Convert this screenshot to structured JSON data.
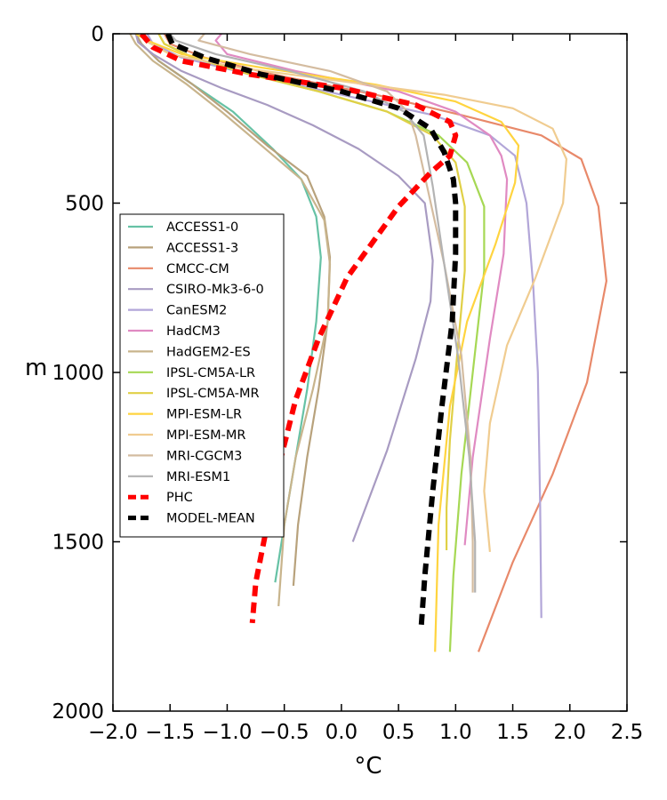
{
  "chart_data": {
    "type": "line",
    "title": "",
    "xlabel": "°C",
    "ylabel": "m",
    "xlim": [
      -2.0,
      2.5
    ],
    "ylim": [
      2000,
      0
    ],
    "y_inverted": true,
    "grid": false,
    "legend_position": "center-left",
    "x_ticks": [
      "−2.0",
      "−1.5",
      "−1.0",
      "−0.5",
      "0.0",
      "0.5",
      "1.0",
      "1.5",
      "2.0",
      "2.5"
    ],
    "y_ticks": [
      "0",
      "500",
      "1000",
      "1500",
      "2000"
    ],
    "series": [
      {
        "name": "ACCESS1-0",
        "color": "#66c2a5",
        "style": "solid",
        "x": [
          -1.8,
          -1.75,
          -1.6,
          -1.3,
          -0.95,
          -0.6,
          -0.35,
          -0.22,
          -0.18,
          -0.22,
          -0.3,
          -0.4,
          -0.5,
          -0.58
        ],
        "y": [
          0,
          30,
          80,
          150,
          230,
          340,
          430,
          540,
          660,
          850,
          1050,
          1250,
          1450,
          1620
        ]
      },
      {
        "name": "ACCESS1-3",
        "color": "#b8a27c",
        "style": "solid",
        "x": [
          -1.8,
          -1.75,
          -1.6,
          -1.3,
          -1.0,
          -0.65,
          -0.3,
          -0.15,
          -0.1,
          -0.12,
          -0.2,
          -0.3,
          -0.38,
          -0.42
        ],
        "y": [
          0,
          30,
          80,
          150,
          230,
          330,
          420,
          540,
          660,
          850,
          1050,
          1250,
          1450,
          1630
        ]
      },
      {
        "name": "CMCC-CM",
        "color": "#e8896a",
        "style": "solid",
        "x": [
          -1.55,
          -1.5,
          -1.2,
          -0.6,
          0.3,
          1.05,
          1.75,
          2.1,
          2.25,
          2.32,
          2.15,
          1.85,
          1.5,
          1.2
        ],
        "y": [
          0,
          30,
          70,
          120,
          180,
          240,
          300,
          370,
          510,
          730,
          1030,
          1300,
          1560,
          1825
        ]
      },
      {
        "name": "CSIRO-Mk3-6-0",
        "color": "#a89bc2",
        "style": "solid",
        "x": [
          -1.8,
          -1.78,
          -1.65,
          -1.4,
          -1.05,
          -0.65,
          -0.25,
          0.15,
          0.5,
          0.73,
          0.8,
          0.78,
          0.65,
          0.4,
          0.1
        ],
        "y": [
          0,
          25,
          60,
          110,
          160,
          210,
          270,
          340,
          420,
          500,
          670,
          790,
          960,
          1230,
          1500
        ]
      },
      {
        "name": "CanESM2",
        "color": "#b2a6d8",
        "style": "solid",
        "x": [
          -1.7,
          -1.65,
          -1.4,
          -0.8,
          0.0,
          0.8,
          1.3,
          1.52,
          1.62,
          1.68,
          1.72,
          1.74,
          1.75
        ],
        "y": [
          0,
          30,
          70,
          120,
          180,
          240,
          300,
          360,
          500,
          750,
          1000,
          1400,
          1725
        ]
      },
      {
        "name": "HadCM3",
        "color": "#e08ac2",
        "style": "solid",
        "x": [
          -1.05,
          -1.1,
          -1.0,
          -0.4,
          0.5,
          1.0,
          1.3,
          1.4,
          1.45,
          1.42,
          1.3,
          1.15,
          1.08
        ],
        "y": [
          0,
          20,
          60,
          110,
          170,
          230,
          300,
          360,
          430,
          650,
          900,
          1250,
          1510
        ]
      },
      {
        "name": "HadGEM2-ES",
        "color": "#c8b48c",
        "style": "solid",
        "x": [
          -1.85,
          -1.8,
          -1.65,
          -1.35,
          -1.05,
          -0.7,
          -0.35,
          -0.15,
          -0.1,
          -0.12,
          -0.25,
          -0.4,
          -0.5,
          -0.55
        ],
        "y": [
          0,
          30,
          80,
          150,
          230,
          330,
          430,
          550,
          680,
          850,
          1050,
          1250,
          1450,
          1690
        ]
      },
      {
        "name": "IPSL-CM5A-LR",
        "color": "#a6d854",
        "style": "solid",
        "x": [
          -1.6,
          -1.55,
          -1.3,
          -0.8,
          -0.2,
          0.4,
          0.85,
          1.1,
          1.25,
          1.25,
          1.15,
          1.05,
          0.98,
          0.95
        ],
        "y": [
          0,
          30,
          70,
          120,
          170,
          230,
          300,
          380,
          510,
          700,
          1000,
          1300,
          1600,
          1825
        ]
      },
      {
        "name": "IPSL-CM5A-MR",
        "color": "#e0d046",
        "style": "solid",
        "x": [
          -1.6,
          -1.55,
          -1.3,
          -0.8,
          -0.2,
          0.4,
          0.8,
          1.0,
          1.08,
          1.08,
          1.0,
          0.95,
          0.92,
          0.92
        ],
        "y": [
          0,
          30,
          70,
          120,
          170,
          230,
          300,
          380,
          510,
          700,
          1000,
          1200,
          1400,
          1525
        ]
      },
      {
        "name": "MPI-ESM-LR",
        "color": "#ffd43f",
        "style": "solid",
        "x": [
          -1.8,
          -1.7,
          -1.4,
          -0.7,
          0.3,
          1.0,
          1.4,
          1.55,
          1.52,
          1.35,
          1.1,
          0.95,
          0.85,
          0.82
        ],
        "y": [
          0,
          20,
          60,
          100,
          150,
          200,
          260,
          330,
          440,
          620,
          850,
          1100,
          1450,
          1825
        ]
      },
      {
        "name": "MPI-ESM-MR",
        "color": "#f0cc90",
        "style": "solid",
        "x": [
          -1.75,
          -1.72,
          -1.5,
          -0.9,
          0.0,
          0.9,
          1.5,
          1.85,
          1.97,
          1.94,
          1.7,
          1.45,
          1.3,
          1.25,
          1.3
        ],
        "y": [
          0,
          20,
          60,
          100,
          140,
          180,
          220,
          280,
          370,
          500,
          720,
          920,
          1150,
          1350,
          1530
        ]
      },
      {
        "name": "MRI-CGCM3",
        "color": "#d4bca0",
        "style": "solid",
        "x": [
          -1.2,
          -1.25,
          -0.8,
          -0.1,
          0.4,
          0.58,
          0.65,
          0.75,
          0.9,
          1.05,
          1.13,
          1.15,
          1.15
        ],
        "y": [
          0,
          20,
          60,
          110,
          170,
          230,
          300,
          450,
          680,
          950,
          1250,
          1500,
          1650
        ]
      },
      {
        "name": "MRI-ESM1",
        "color": "#b3b3b3",
        "style": "solid",
        "x": [
          -1.5,
          -1.45,
          -1.1,
          -0.45,
          0.2,
          0.55,
          0.72,
          0.8,
          0.9,
          1.02,
          1.12,
          1.17,
          1.17
        ],
        "y": [
          0,
          20,
          60,
          110,
          170,
          230,
          300,
          450,
          680,
          950,
          1250,
          1500,
          1650
        ]
      },
      {
        "name": "PHC",
        "color": "#ff0000",
        "style": "dashed",
        "x": [
          -1.75,
          -1.65,
          -1.4,
          -0.8,
          0.0,
          0.65,
          0.95,
          1.0,
          0.95,
          0.78,
          0.5,
          0.05,
          -0.2,
          -0.4,
          -0.55,
          -0.65,
          -0.75,
          -0.78
        ],
        "y": [
          0,
          40,
          80,
          120,
          160,
          210,
          260,
          300,
          360,
          410,
          510,
          720,
          900,
          1080,
          1280,
          1450,
          1620,
          1740
        ]
      },
      {
        "name": "MODEL-MEAN",
        "color": "#000000",
        "style": "dashed",
        "x": [
          -1.52,
          -1.48,
          -1.2,
          -0.7,
          0.0,
          0.5,
          0.78,
          0.9,
          0.98,
          1.0,
          1.0,
          0.97,
          0.88,
          0.8,
          0.73,
          0.7
        ],
        "y": [
          0,
          30,
          70,
          120,
          170,
          220,
          280,
          350,
          430,
          500,
          650,
          850,
          1100,
          1350,
          1600,
          1745
        ]
      }
    ]
  }
}
